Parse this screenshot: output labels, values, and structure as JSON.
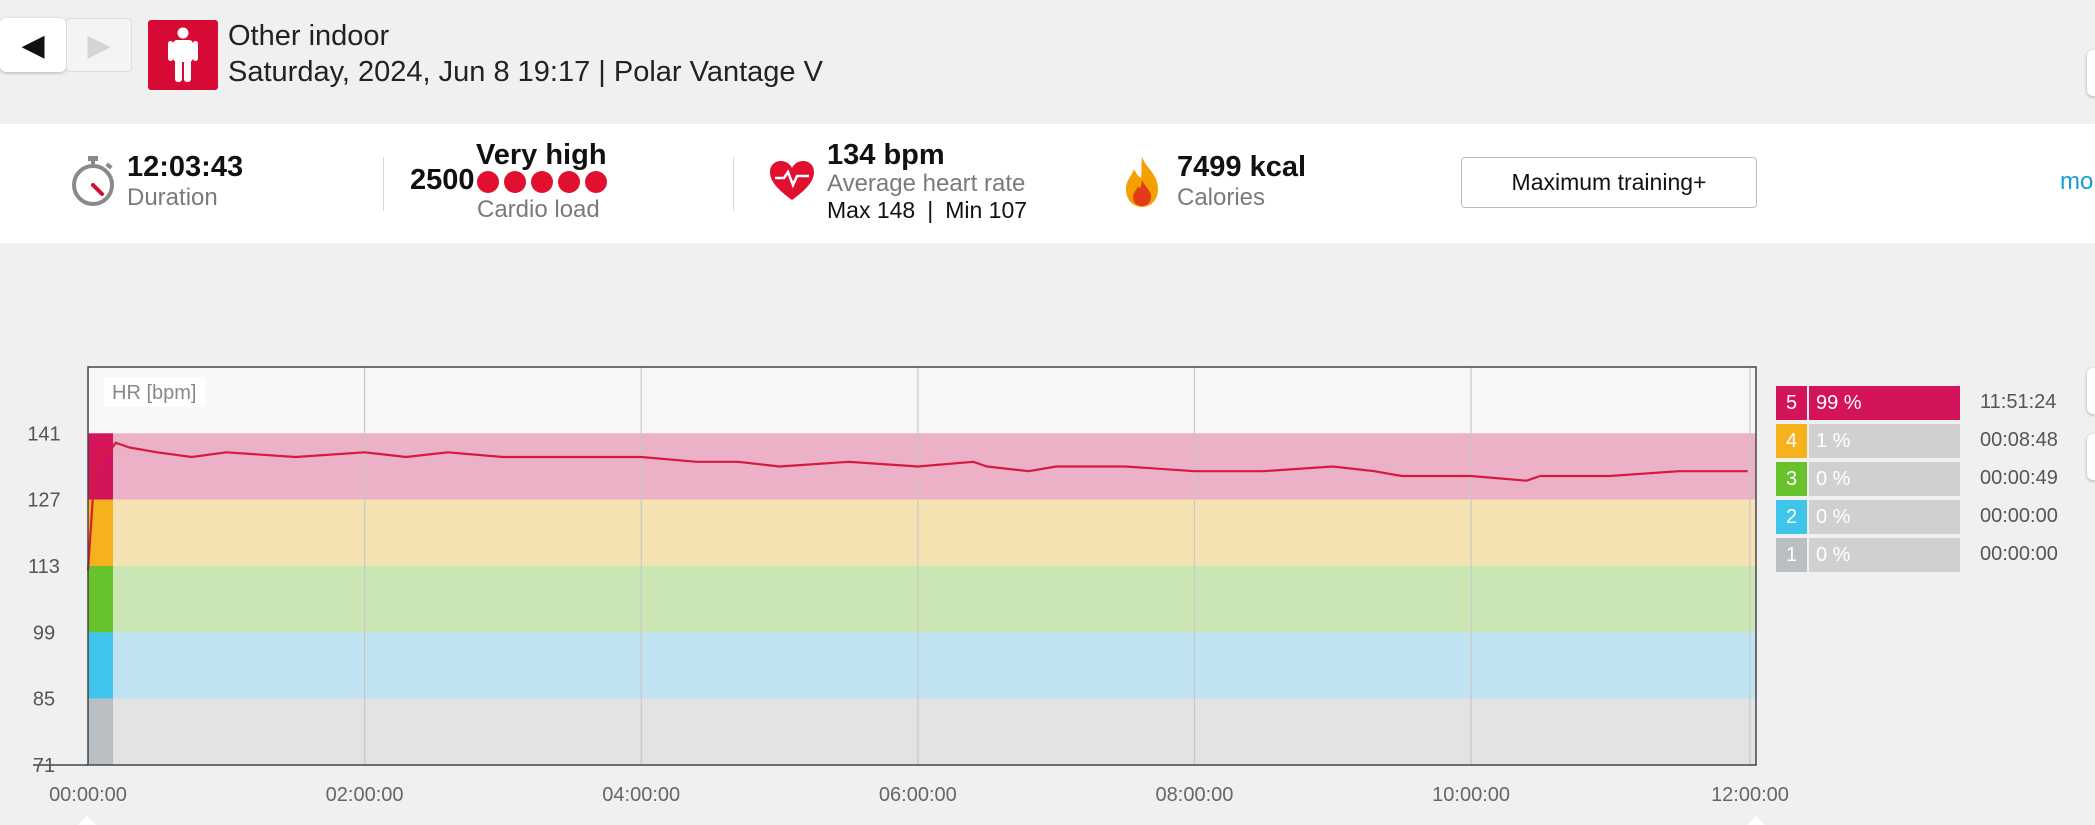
{
  "header": {
    "prev_icon": "triangle-left-icon",
    "next_icon": "triangle-right-icon",
    "sport_icon": "person-standing-icon",
    "title": "Other indoor",
    "subtitle": "Saturday, 2024, Jun 8 19:17 | Polar Vantage V"
  },
  "summary": {
    "duration": {
      "icon": "stopwatch-icon",
      "value": "12:03:43",
      "label": "Duration"
    },
    "cardio_load": {
      "value": "2500",
      "level": "Very high",
      "label": "Cardio load",
      "dots": 5
    },
    "heart_rate": {
      "icon": "heart-icon",
      "value": "134 bpm",
      "label": "Average heart rate",
      "max": "Max 148",
      "separator": "|",
      "min": "Min 107"
    },
    "calories": {
      "icon": "flame-icon",
      "value": "7499 kcal",
      "label": "Calories"
    },
    "training_benefit": "Maximum training+",
    "more_link": "mo"
  },
  "colors": {
    "brand_red": "#d60a35",
    "hr_line": "#d8193f",
    "zone5": "#d4145a",
    "zone4": "#f5b21c",
    "zone3": "#68c22c",
    "zone2": "#3fc4ec",
    "zone1": "#b9bfc2",
    "link": "#1a9bd6"
  },
  "chart_data": {
    "type": "line",
    "title": "HR [bpm]",
    "xlabel": "",
    "ylabel": "HR [bpm]",
    "x_ticks": [
      "00:00:00",
      "02:00:00",
      "04:00:00",
      "06:00:00",
      "08:00:00",
      "10:00:00",
      "12:00:00"
    ],
    "y_ticks": [
      141,
      127,
      113,
      99,
      85,
      71
    ],
    "ylim": [
      71,
      155
    ],
    "xlim_hours": [
      0,
      12.06
    ],
    "grid": true,
    "zone_bands": [
      {
        "zone": 5,
        "from": 127,
        "to": 141
      },
      {
        "zone": 4,
        "from": 113,
        "to": 127
      },
      {
        "zone": 3,
        "from": 99,
        "to": 113
      },
      {
        "zone": 2,
        "from": 85,
        "to": 99
      },
      {
        "zone": 1,
        "from": 71,
        "to": 85
      }
    ],
    "series": [
      {
        "x": [
          0,
          0.05,
          0.1,
          0.15,
          0.2,
          0.3,
          0.5,
          0.75,
          1.0,
          1.5,
          2.0,
          2.3,
          2.6,
          3.0,
          3.5,
          4.0,
          4.4,
          4.7,
          5.0,
          5.5,
          6.0,
          6.4,
          6.5,
          6.8,
          7.0,
          7.5,
          8.0,
          8.5,
          9.0,
          9.3,
          9.5,
          10.0,
          10.4,
          10.5,
          11.0,
          11.5,
          12.0
        ],
        "y": [
          112,
          134,
          138,
          137,
          139,
          138,
          137,
          136,
          137,
          136,
          137,
          136,
          137,
          136,
          136,
          136,
          135,
          135,
          134,
          135,
          134,
          135,
          134,
          133,
          134,
          134,
          133,
          133,
          134,
          133,
          132,
          132,
          131,
          132,
          132,
          133,
          133
        ]
      }
    ]
  },
  "zones": [
    {
      "num": "5",
      "pct": "99 %",
      "time": "11:51:24"
    },
    {
      "num": "4",
      "pct": "1 %",
      "time": "00:08:48"
    },
    {
      "num": "3",
      "pct": "0 %",
      "time": "00:00:49"
    },
    {
      "num": "2",
      "pct": "0 %",
      "time": "00:00:00"
    },
    {
      "num": "1",
      "pct": "0 %",
      "time": "00:00:00"
    }
  ]
}
